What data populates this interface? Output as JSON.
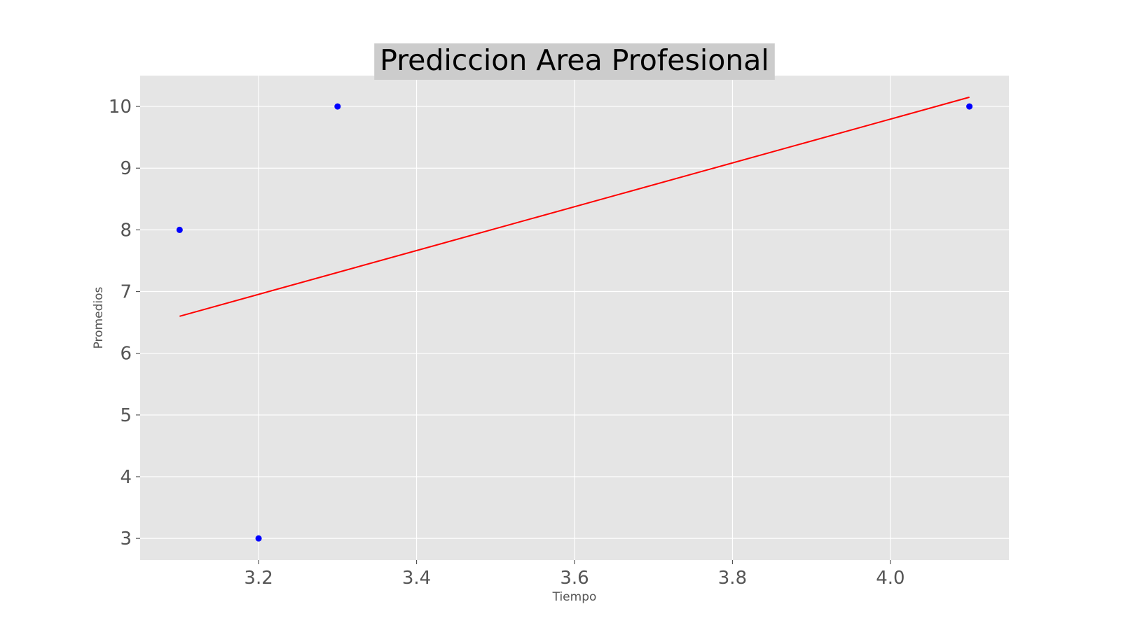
{
  "chart_data": {
    "type": "scatter",
    "title": "Prediccion Area Profesional",
    "xlabel": "Tiempo",
    "ylabel": "Promedios",
    "xlim": [
      3.05,
      4.15
    ],
    "ylim": [
      2.65,
      10.5
    ],
    "xticks": [
      "3.2",
      "3.4",
      "3.6",
      "3.8",
      "4.0"
    ],
    "yticks": [
      "3",
      "4",
      "5",
      "6",
      "7",
      "8",
      "9",
      "10"
    ],
    "grid": true,
    "series": [
      {
        "kind": "points",
        "color": "#0000ff",
        "x": [
          3.1,
          3.2,
          3.3,
          4.1
        ],
        "y": [
          8,
          3,
          10,
          10
        ]
      },
      {
        "kind": "line",
        "color": "#ff0000",
        "x": [
          3.1,
          4.1
        ],
        "y": [
          6.6,
          10.15
        ]
      }
    ]
  },
  "style": {
    "plot_background": "#e5e5e5",
    "grid_color": "#ffffff",
    "title_box_color": "#cccccc"
  }
}
